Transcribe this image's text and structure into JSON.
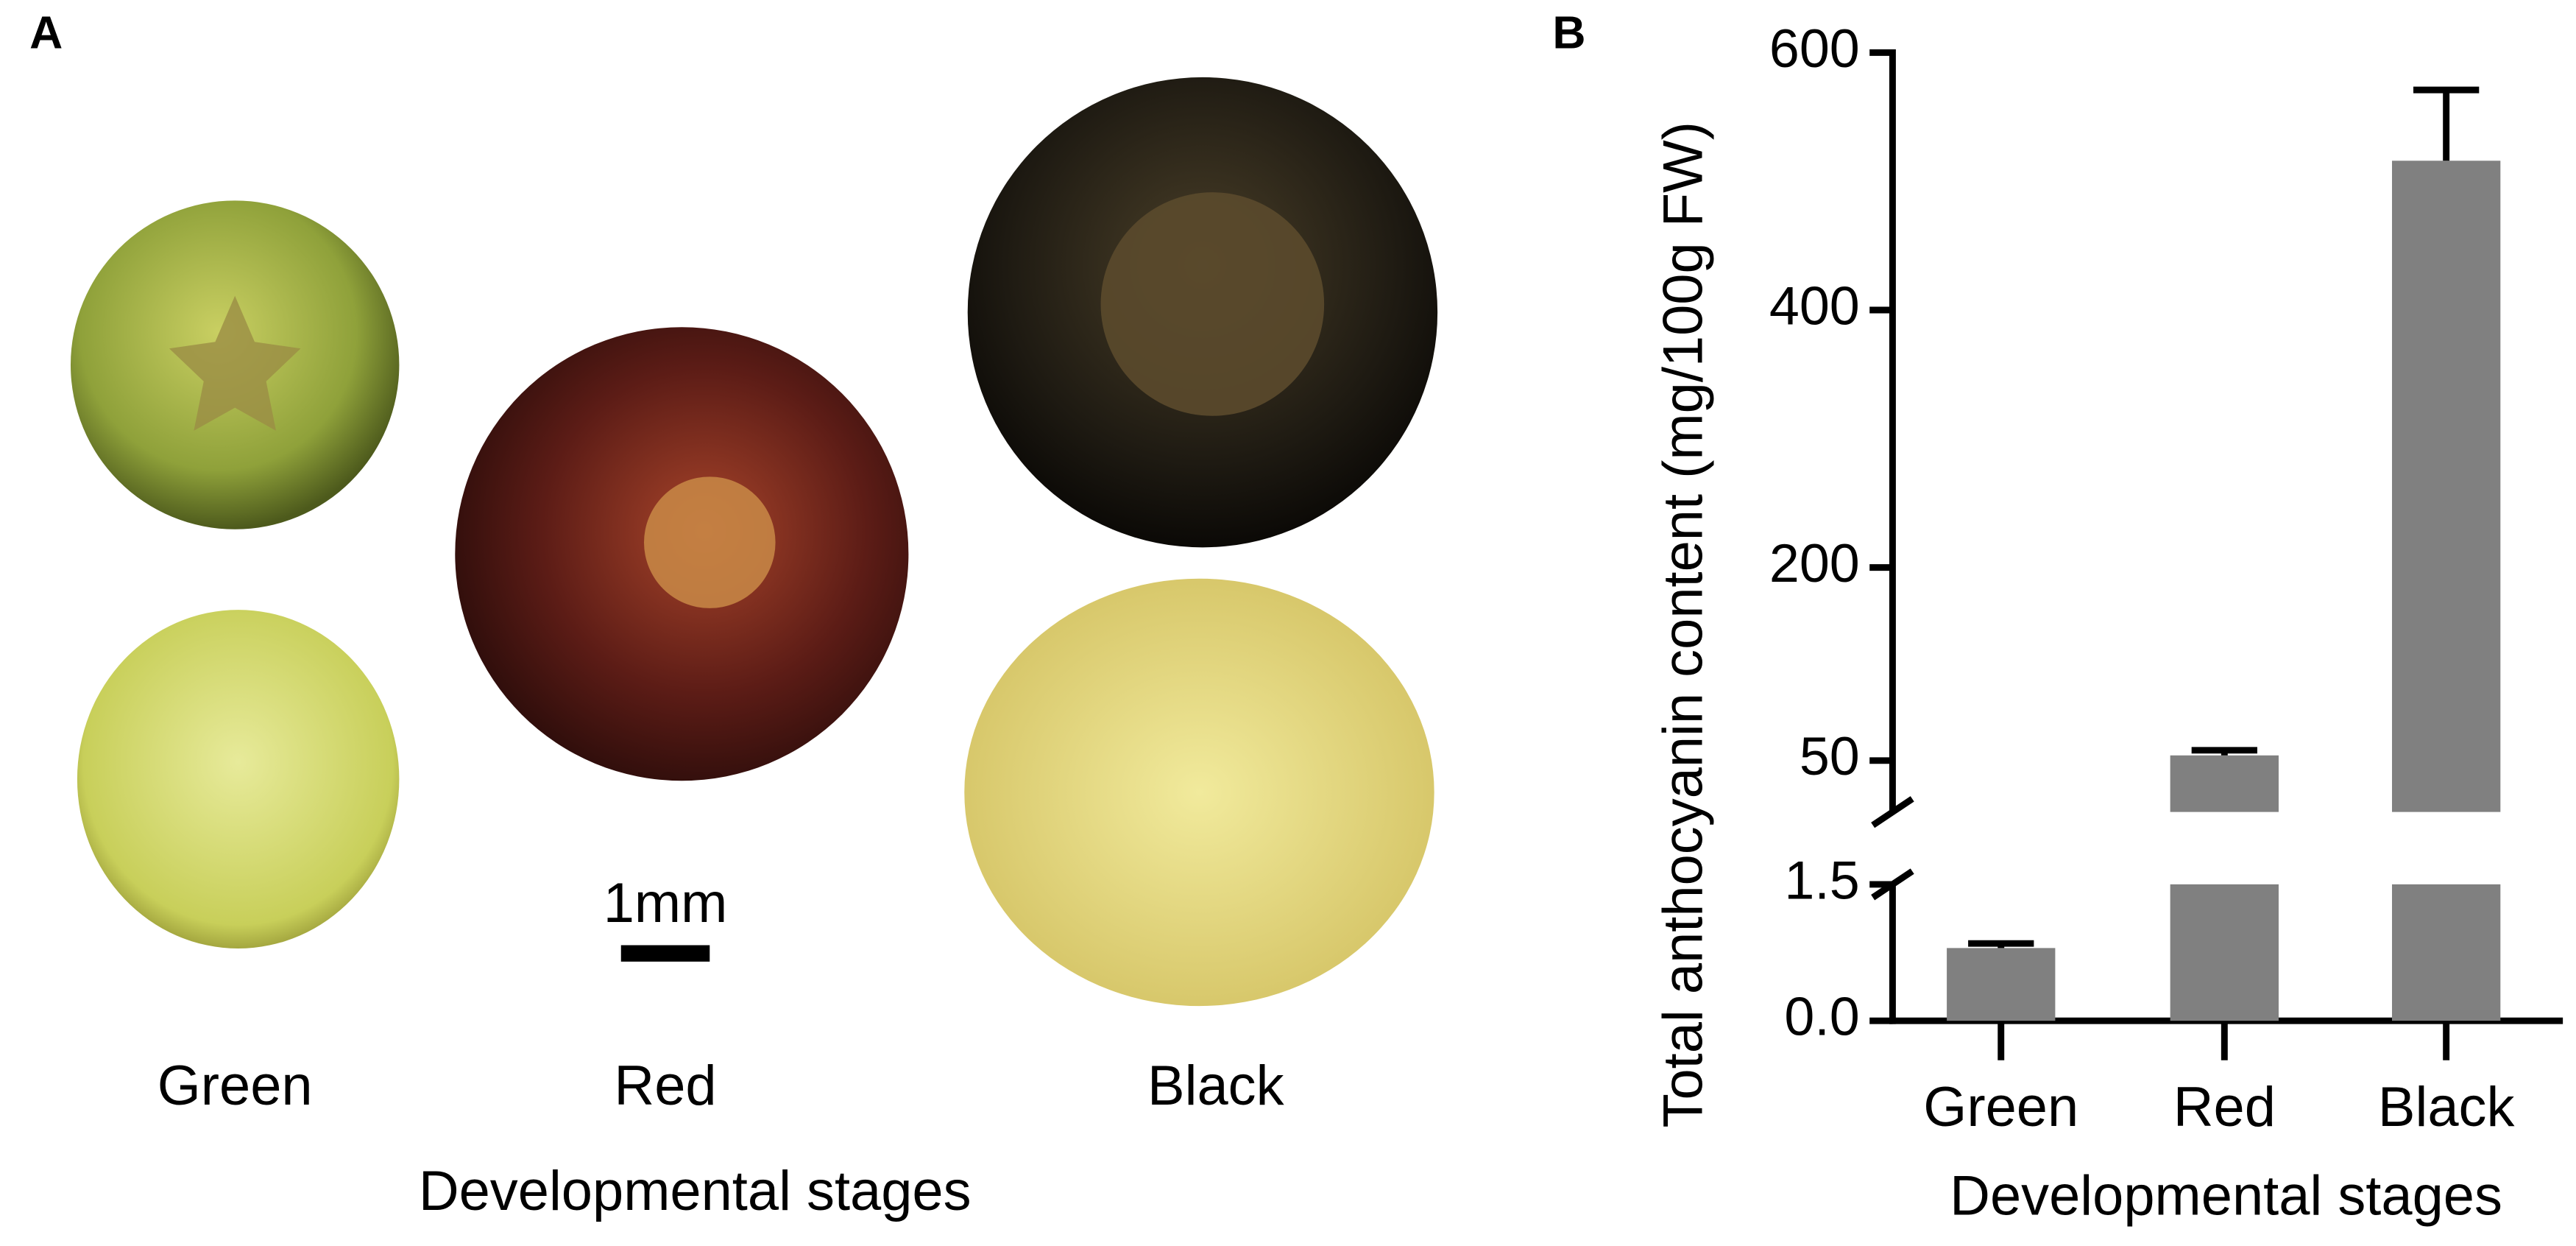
{
  "panel_a": {
    "label": "A",
    "scale_bar": "1mm",
    "stages": [
      "Green",
      "Red",
      "Black"
    ],
    "xlabel": "Developmental stages"
  },
  "chart_data": {
    "type": "bar",
    "panel_label": "B",
    "xlabel": "Developmental stages",
    "ylabel": "Total anthocyanin content (mg/100g FW)",
    "categories": [
      "Green",
      "Red",
      "Black"
    ],
    "values": [
      0.8,
      54,
      516
    ],
    "errors": [
      0.05,
      4,
      55
    ],
    "color": "#808080",
    "error_color": "#000000",
    "y_segments": [
      {
        "ylim": [
          0,
          1.5
        ],
        "yticks": [
          {
            "value": 0,
            "label": "0.0"
          },
          1.5
        ]
      },
      {
        "ylim": [
          10,
          600
        ],
        "yticks": [
          50,
          200,
          400,
          600
        ]
      }
    ]
  }
}
